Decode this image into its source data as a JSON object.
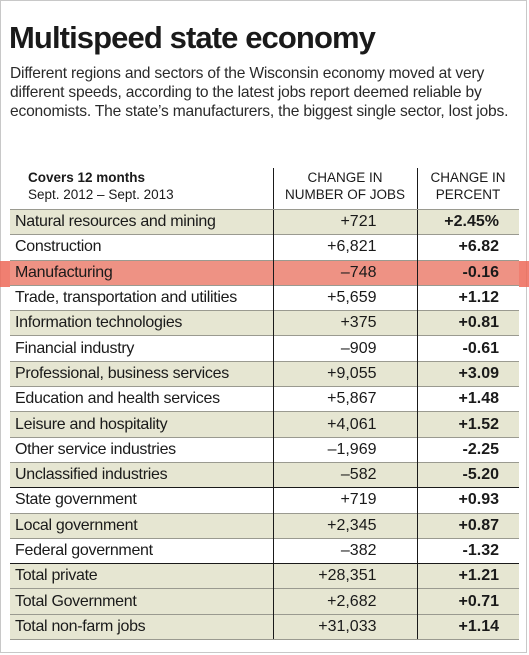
{
  "title": "Multispeed state economy",
  "subtitle": "Different regions and sectors of the Wisconsin economy moved at very different speeds, according to the latest jobs report deemed reliable by economists. The state’s manufacturers, the biggest single sector, lost jobs.",
  "header": {
    "period_label": "Covers 12 months",
    "period_range": "Sept. 2012 – Sept. 2013",
    "col_jobs_line1": "CHANGE IN",
    "col_jobs_line2": "NUMBER OF JOBS",
    "col_pct_line1": "CHANGE IN",
    "col_pct_line2": "PERCENT"
  },
  "colors": {
    "row_tint": "#e6e6d2",
    "highlight": "#ed6858"
  },
  "chart_data": {
    "type": "table",
    "highlighted_row": "Manufacturing",
    "rows": [
      {
        "sector": "Natural resources and mining",
        "jobs": "+721",
        "pct": "+2.45%"
      },
      {
        "sector": "Construction",
        "jobs": "+6,821",
        "pct": "+6.82"
      },
      {
        "sector": "Manufacturing",
        "jobs": "–748",
        "pct": "-0.16"
      },
      {
        "sector": "Trade, transportation and utilities",
        "jobs": "+5,659",
        "pct": "+1.12"
      },
      {
        "sector": "Information technologies",
        "jobs": "+375",
        "pct": "+0.81"
      },
      {
        "sector": "Financial industry",
        "jobs": "–909",
        "pct": "-0.61"
      },
      {
        "sector": "Professional, business services",
        "jobs": "+9,055",
        "pct": "+3.09"
      },
      {
        "sector": "Education and health services",
        "jobs": "+5,867",
        "pct": "+1.48"
      },
      {
        "sector": "Leisure and hospitality",
        "jobs": "+4,061",
        "pct": "+1.52"
      },
      {
        "sector": "Other service industries",
        "jobs": "–1,969",
        "pct": "-2.25"
      },
      {
        "sector": "Unclassified industries",
        "jobs": "–582",
        "pct": "-5.20"
      },
      {
        "sector": "State government",
        "jobs": "+719",
        "pct": "+0.93"
      },
      {
        "sector": "Local government",
        "jobs": "+2,345",
        "pct": "+0.87"
      },
      {
        "sector": "Federal government",
        "jobs": "–382",
        "pct": "-1.32"
      },
      {
        "sector": "Total private",
        "jobs": "+28,351",
        "pct": "+1.21"
      },
      {
        "sector": "Total Government",
        "jobs": "+2,682",
        "pct": "+0.71"
      },
      {
        "sector": "Total non-farm jobs",
        "jobs": "+31,033",
        "pct": "+1.14"
      }
    ]
  }
}
